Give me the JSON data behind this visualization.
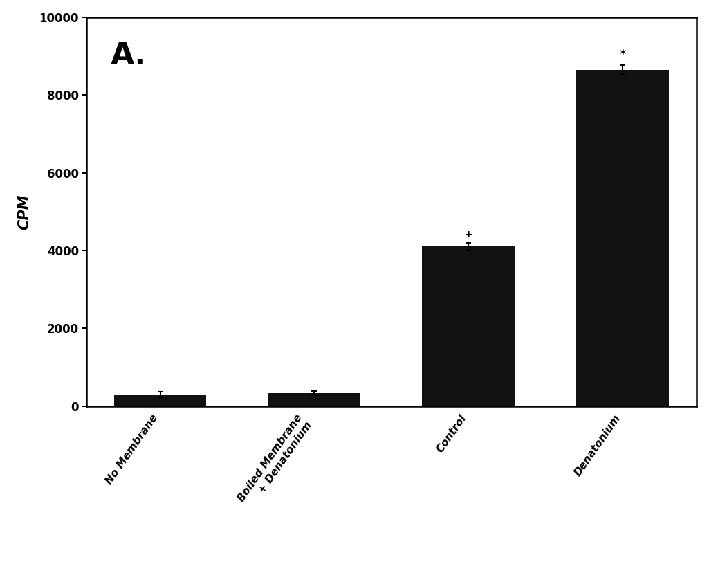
{
  "categories": [
    "No Membrane",
    "Boiled Membrane\n+ Denatonium",
    "Control",
    "Denatonium"
  ],
  "values": [
    280,
    330,
    4100,
    8650
  ],
  "errors": [
    80,
    55,
    100,
    130
  ],
  "bar_color": "#111111",
  "ylabel": "CPM",
  "ylim": [
    0,
    10000
  ],
  "yticks": [
    0,
    2000,
    4000,
    6000,
    8000,
    10000
  ],
  "panel_label": "A.",
  "background_color": "#ffffff",
  "asterisk_bar": 3,
  "asterisk_text": "*",
  "bar_width": 0.6,
  "figure_width": 10.38,
  "figure_height": 8.38
}
